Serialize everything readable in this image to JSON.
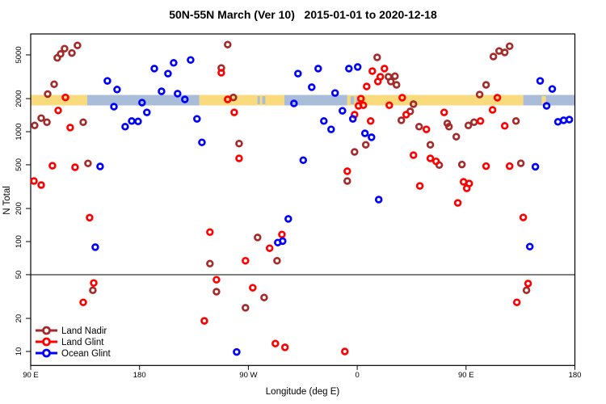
{
  "title": "50N-55N March (Ver 10)   2015-01-01 to 2020-12-18",
  "chart_data": {
    "type": "scatter",
    "xlabel": "Longitude (deg E)",
    "ylabel": "N Total",
    "y_scale": "log10",
    "ylim": [
      7.5,
      7800
    ],
    "x_axis_span_deg": 450,
    "x_ticks": [
      {
        "deg": 0,
        "label": "90 E"
      },
      {
        "deg": 90,
        "label": "180"
      },
      {
        "deg": 180,
        "label": "90 W"
      },
      {
        "deg": 270,
        "label": "0"
      },
      {
        "deg": 360,
        "label": "90 E"
      },
      {
        "deg": 450,
        "label": "180"
      }
    ],
    "y_ticks": [
      10,
      20,
      50,
      100,
      200,
      500,
      1000,
      2000,
      5000
    ],
    "reference_line_n": 50,
    "surface_band": {
      "n_level": 2100,
      "colors": {
        "land": "#F9DA7C",
        "ocean": "#A9BDD9"
      },
      "segments": [
        {
          "surface": "land",
          "from": 0,
          "to": 46.7
        },
        {
          "surface": "ocean",
          "from": 46.7,
          "to": 139.5
        },
        {
          "surface": "land",
          "from": 139.5,
          "to": 209.7
        },
        {
          "surface": "ocean",
          "from": 209.7,
          "to": 261.8
        },
        {
          "surface": "land",
          "from": 261.8,
          "to": 407.3
        },
        {
          "surface": "ocean",
          "from": 407.3,
          "to": 450
        }
      ],
      "patches": [
        {
          "surface": "ocean",
          "from": 187.5,
          "to": 189.5
        },
        {
          "surface": "ocean",
          "from": 191.5,
          "to": 194
        },
        {
          "surface": "ocean",
          "from": 264.5,
          "to": 267.5
        },
        {
          "surface": "ocean",
          "from": 269,
          "to": 271.5
        },
        {
          "surface": "land",
          "from": 422.5,
          "to": 426
        }
      ]
    },
    "series": [
      {
        "name": "Land Nadir",
        "color": "#A52A2A",
        "points": [
          [
            24.7,
            5100
          ],
          [
            28,
            5700
          ],
          [
            34.1,
            5200
          ],
          [
            38.7,
            6100
          ],
          [
            22,
            4700
          ],
          [
            19.4,
            2700
          ],
          [
            14,
            2200
          ],
          [
            8.7,
            1330
          ],
          [
            13.4,
            1220
          ],
          [
            3.3,
            1140
          ],
          [
            43.4,
            1220
          ],
          [
            47.4,
            515
          ],
          [
            51.4,
            36
          ],
          [
            162.9,
            6200
          ],
          [
            157.6,
            3800
          ],
          [
            167.6,
            2050
          ],
          [
            172.3,
            780
          ],
          [
            187.6,
            109
          ],
          [
            203.7,
            67
          ],
          [
            148.2,
            63
          ],
          [
            153.6,
            35
          ],
          [
            193,
            31
          ],
          [
            177.6,
            25
          ],
          [
            286.5,
            4750
          ],
          [
            295.8,
            3160
          ],
          [
            301.2,
            3200
          ],
          [
            297.8,
            2860
          ],
          [
            302.5,
            2670
          ],
          [
            316.5,
            1780
          ],
          [
            313.8,
            1530
          ],
          [
            306.5,
            1270
          ],
          [
            277.1,
            760
          ],
          [
            267.8,
            655
          ],
          [
            321.2,
            1110
          ],
          [
            330.5,
            760
          ],
          [
            337.8,
            497
          ],
          [
            261.8,
            356
          ],
          [
            382.6,
            4830
          ],
          [
            387.3,
            5430
          ],
          [
            392,
            5260
          ],
          [
            396,
            6000
          ],
          [
            376.6,
            2670
          ],
          [
            371.2,
            2180
          ],
          [
            344.5,
            1190
          ],
          [
            345.9,
            1110
          ],
          [
            361.9,
            1140
          ],
          [
            366.6,
            1220
          ],
          [
            401.3,
            1250
          ],
          [
            351.9,
            900
          ],
          [
            356.6,
            503
          ],
          [
            405.3,
            516
          ],
          [
            410,
            36
          ]
        ]
      },
      {
        "name": "Land Glint",
        "color": "#FF0000",
        "points": [
          [
            28.7,
            2050
          ],
          [
            22.7,
            1560
          ],
          [
            32.7,
            1090
          ],
          [
            18,
            490
          ],
          [
            36.7,
            475
          ],
          [
            2.7,
            356
          ],
          [
            8.7,
            327
          ],
          [
            48.7,
            165
          ],
          [
            52.1,
            42
          ],
          [
            43.4,
            28
          ],
          [
            157.6,
            3440
          ],
          [
            162.9,
            1970
          ],
          [
            168.3,
            1500
          ],
          [
            172.3,
            572
          ],
          [
            148.2,
            122
          ],
          [
            207.7,
            116
          ],
          [
            197.6,
            87
          ],
          [
            177.6,
            67
          ],
          [
            153.6,
            45
          ],
          [
            183.6,
            38
          ],
          [
            143.6,
            19
          ],
          [
            202.3,
            11.8
          ],
          [
            210.3,
            10.9
          ],
          [
            259.8,
            10
          ],
          [
            282.5,
            3560
          ],
          [
            292.5,
            3750
          ],
          [
            289.1,
            3160
          ],
          [
            287.1,
            2860
          ],
          [
            277.8,
            2580
          ],
          [
            273.1,
            2000
          ],
          [
            307.2,
            2040
          ],
          [
            271.1,
            1720
          ],
          [
            275.1,
            1740
          ],
          [
            267.8,
            1430
          ],
          [
            296.5,
            1740
          ],
          [
            310.5,
            1430
          ],
          [
            281.1,
            1250
          ],
          [
            327.2,
            1050
          ],
          [
            316.5,
            612
          ],
          [
            330.5,
            572
          ],
          [
            261.8,
            437
          ],
          [
            321.8,
            321
          ],
          [
            385.9,
            2040
          ],
          [
            381.9,
            1580
          ],
          [
            341.9,
            1500
          ],
          [
            371.9,
            1250
          ],
          [
            392,
            1130
          ],
          [
            335.2,
            537
          ],
          [
            376.6,
            486
          ],
          [
            396,
            486
          ],
          [
            357.9,
            350
          ],
          [
            362.6,
            338
          ],
          [
            360.6,
            305
          ],
          [
            353.2,
            225
          ],
          [
            407.3,
            166
          ],
          [
            411.3,
            41.5
          ],
          [
            402,
            28
          ]
        ]
      },
      {
        "name": "Ocean Glint",
        "color": "#0000FF",
        "points": [
          [
            63.4,
            2900
          ],
          [
            71.4,
            2420
          ],
          [
            68.8,
            1690
          ],
          [
            92.1,
            1840
          ],
          [
            96.1,
            1500
          ],
          [
            78.1,
            1110
          ],
          [
            83.5,
            1250
          ],
          [
            88.8,
            1240
          ],
          [
            102.2,
            3750
          ],
          [
            113.5,
            3380
          ],
          [
            108.2,
            2330
          ],
          [
            57.4,
            483
          ],
          [
            53.4,
            89
          ],
          [
            170.3,
            9.9
          ],
          [
            132.2,
            4500
          ],
          [
            118.2,
            4230
          ],
          [
            221,
            3380
          ],
          [
            121.5,
            2220
          ],
          [
            127.5,
            1970
          ],
          [
            217.7,
            1810
          ],
          [
            137.5,
            1310
          ],
          [
            141.6,
            800
          ],
          [
            225.4,
            550
          ],
          [
            213,
            161
          ],
          [
            204.3,
            98
          ],
          [
            208.3,
            101
          ],
          [
            237.7,
            3750
          ],
          [
            263.1,
            3750
          ],
          [
            270.4,
            3880
          ],
          [
            232.4,
            2540
          ],
          [
            251.7,
            2250
          ],
          [
            257.8,
            1550
          ],
          [
            266.4,
            1310
          ],
          [
            242.4,
            1250
          ],
          [
            248.4,
            1050
          ],
          [
            276.4,
            966
          ],
          [
            281.8,
            890
          ],
          [
            287.8,
            241
          ],
          [
            421.3,
            2900
          ],
          [
            431.3,
            2450
          ],
          [
            426.6,
            1720
          ],
          [
            436,
            1230
          ],
          [
            440.7,
            1270
          ],
          [
            445.4,
            1290
          ],
          [
            417.3,
            480
          ],
          [
            412.7,
            90
          ]
        ]
      }
    ],
    "legend_position": "bottom-left"
  }
}
